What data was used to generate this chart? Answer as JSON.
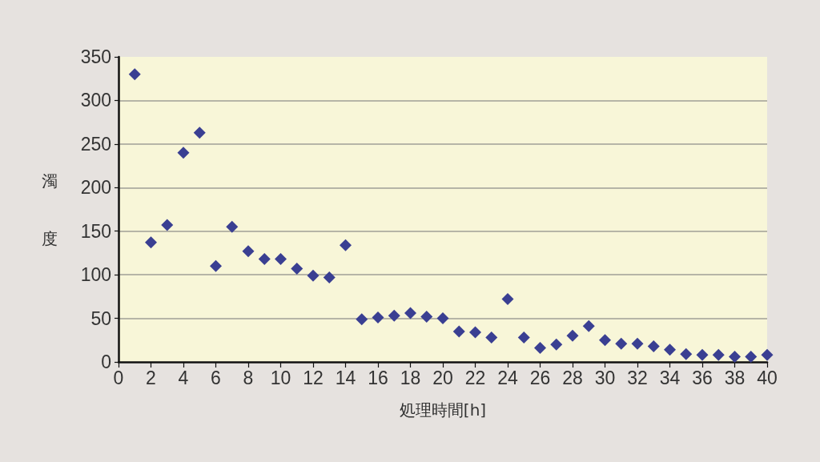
{
  "chart_data": {
    "type": "scatter",
    "xlabel": "処理時間[h]",
    "ylabel": "濁度",
    "x": [
      1,
      2,
      3,
      4,
      5,
      6,
      7,
      8,
      9,
      10,
      11,
      12,
      13,
      14,
      15,
      16,
      17,
      18,
      19,
      20,
      21,
      22,
      23,
      24,
      25,
      26,
      27,
      28,
      29,
      30,
      31,
      32,
      33,
      34,
      35,
      36,
      37,
      38,
      39,
      40
    ],
    "series": [
      {
        "color": "#3a3f92",
        "values": [
          330,
          137,
          157,
          240,
          263,
          110,
          155,
          127,
          118,
          118,
          107,
          99,
          97,
          134,
          49,
          51,
          53,
          56,
          52,
          50,
          35,
          34,
          28,
          72,
          28,
          16,
          20,
          30,
          41,
          25,
          21,
          21,
          18,
          14,
          9,
          8,
          8,
          6,
          6,
          8
        ]
      }
    ],
    "xlim": [
      0,
      40
    ],
    "xticks": [
      0,
      2,
      4,
      6,
      8,
      10,
      12,
      14,
      16,
      18,
      20,
      22,
      24,
      26,
      28,
      30,
      32,
      34,
      36,
      38,
      40
    ],
    "ylim": [
      0,
      350
    ],
    "yticks": [
      0,
      50,
      100,
      150,
      200,
      250,
      300,
      350
    ],
    "grid": "y",
    "marker": "diamond"
  }
}
